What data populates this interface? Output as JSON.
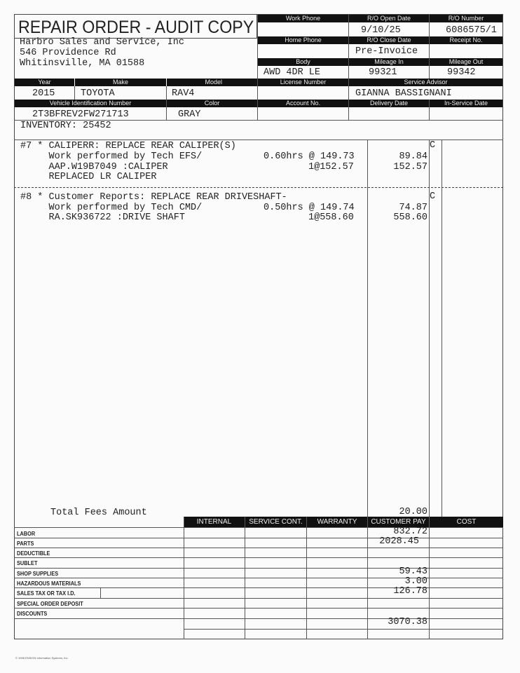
{
  "title": "REPAIR ORDER - AUDIT COPY",
  "dealer": {
    "name": "Harbro Sales and Service, Inc",
    "address1": "546 Providence Rd",
    "address2": "Whitinsville, MA 01588"
  },
  "header": {
    "work_phone_label": "Work Phone",
    "work_phone": "",
    "ro_open_date_label": "R/O Open Date",
    "ro_open_date": "9/10/25",
    "ro_number_label": "R/O Number",
    "ro_number": "6086575/1",
    "home_phone_label": "Home Phone",
    "home_phone": "",
    "ro_close_date_label": "R/O Close Date",
    "ro_close_date": "Pre-Invoice",
    "receipt_label": "Receipt No.",
    "receipt": "",
    "body_label": "Body",
    "body": "AWD 4DR LE",
    "mileage_in_label": "Mileage In",
    "mileage_in": "99321",
    "mileage_out_label": "Mileage Out",
    "mileage_out": "99342"
  },
  "vehicle": {
    "year_label": "Year",
    "year": "2015",
    "make_label": "Make",
    "make": "TOYOTA",
    "model_label": "Model",
    "model": "RAV4",
    "license_label": "License Number",
    "license": "",
    "advisor_label": "Service Advisor",
    "advisor": "GIANNA BASSIGNANI",
    "vin_label": "Vehicle Identification Number",
    "vin": "2T3BFREV2FW271713",
    "color_label": "Color",
    "color": "GRAY",
    "account_label": "Account No.",
    "account": "",
    "delivery_label": "Delivery Date",
    "delivery": "",
    "in_service_label": "In-Service Date",
    "in_service": ""
  },
  "inventory": "INVENTORY: 25452",
  "lines": [
    {
      "title": "#7 * CALIPERR: REPLACE REAR CALIPER(S)",
      "code": "C",
      "labor_desc": "     Work performed by Tech EFS/",
      "labor_rate": "0.60hrs @ 149.73",
      "labor_amount": "89.84",
      "part_desc": "     AAP.W19B7049 :CALIPER",
      "part_qty": "1@152.57",
      "part_amount": "152.57",
      "note": "     REPLACED LR CALIPER"
    },
    {
      "title": "#8 * Customer Reports: REPLACE REAR DRIVESHAFT-",
      "code": "C",
      "labor_desc": "     Work performed by Tech CMD/",
      "labor_rate": "0.50hrs @ 149.74",
      "labor_amount": "74.87",
      "part_desc": "     RA.SK936722 :DRIVE SHAFT",
      "part_qty": "1@558.60",
      "part_amount": "558.60"
    }
  ],
  "fees": {
    "label": "Total Fees Amount",
    "amount": "20.00"
  },
  "totals": {
    "columns": [
      "INTERNAL",
      "SERVICE CONT.",
      "WARRANTY",
      "CUSTOMER PAY",
      "COST"
    ],
    "rows": [
      {
        "label": "LABOR",
        "customer_pay": "832.72"
      },
      {
        "label": "PARTS",
        "customer_pay": "2028.45"
      },
      {
        "label": "DEDUCTIBLE",
        "customer_pay": ""
      },
      {
        "label": "SUBLET",
        "customer_pay": ""
      },
      {
        "label": "SHOP SUPPLIES",
        "customer_pay": "59.43"
      },
      {
        "label": "HAZARDOUS MATERIALS",
        "customer_pay": "3.00"
      },
      {
        "label": "SALES TAX OR TAX I.D.",
        "customer_pay": "126.78"
      },
      {
        "label": "SPECIAL ORDER DEPOSIT",
        "customer_pay": ""
      },
      {
        "label": "DISCOUNTS",
        "customer_pay": ""
      }
    ],
    "grand_total": "3070.38"
  },
  "footer": "© 1998 ENSIGN Information Systems, Inc."
}
